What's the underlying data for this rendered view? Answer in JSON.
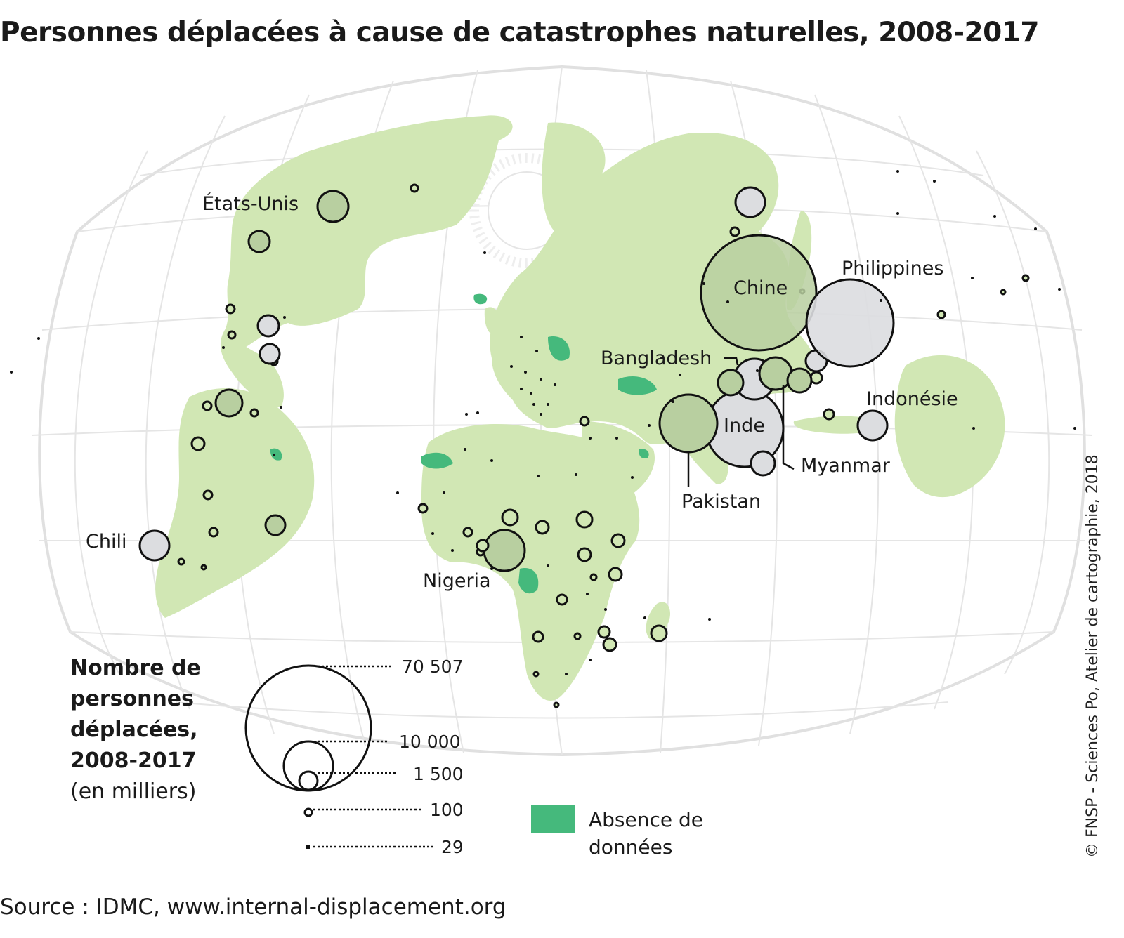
{
  "title": "Personnes déplacées à cause de catastrophes naturelles, 2008-2017",
  "source": "Source : IDMC, www.internal-displacement.org",
  "credit": "© FNSP - Sciences Po, Atelier de cartographie, 2018",
  "colors": {
    "land": "#d1e7b4",
    "no_data": "#45b97c",
    "graticule": "#e3e3e3",
    "circle_fill": "#dcdde0",
    "circle_fill_land": "#b8cfa0",
    "stroke": "#111111"
  },
  "country_labels": {
    "usa": "États-Unis",
    "chile": "Chili",
    "nigeria": "Nigeria",
    "china": "Chine",
    "philippines": "Philippines",
    "bangladesh": "Bangladesh",
    "india": "Inde",
    "indonesia": "Indonésie",
    "myanmar": "Myanmar",
    "pakistan": "Pakistan"
  },
  "legend": {
    "title": "Nombre de personnes déplacées, 2008-2017",
    "unit": "(en milliers)",
    "values": [
      "70 507",
      "10 000",
      "1 500",
      "100",
      "29"
    ],
    "no_data_label": "Absence de données"
  }
}
